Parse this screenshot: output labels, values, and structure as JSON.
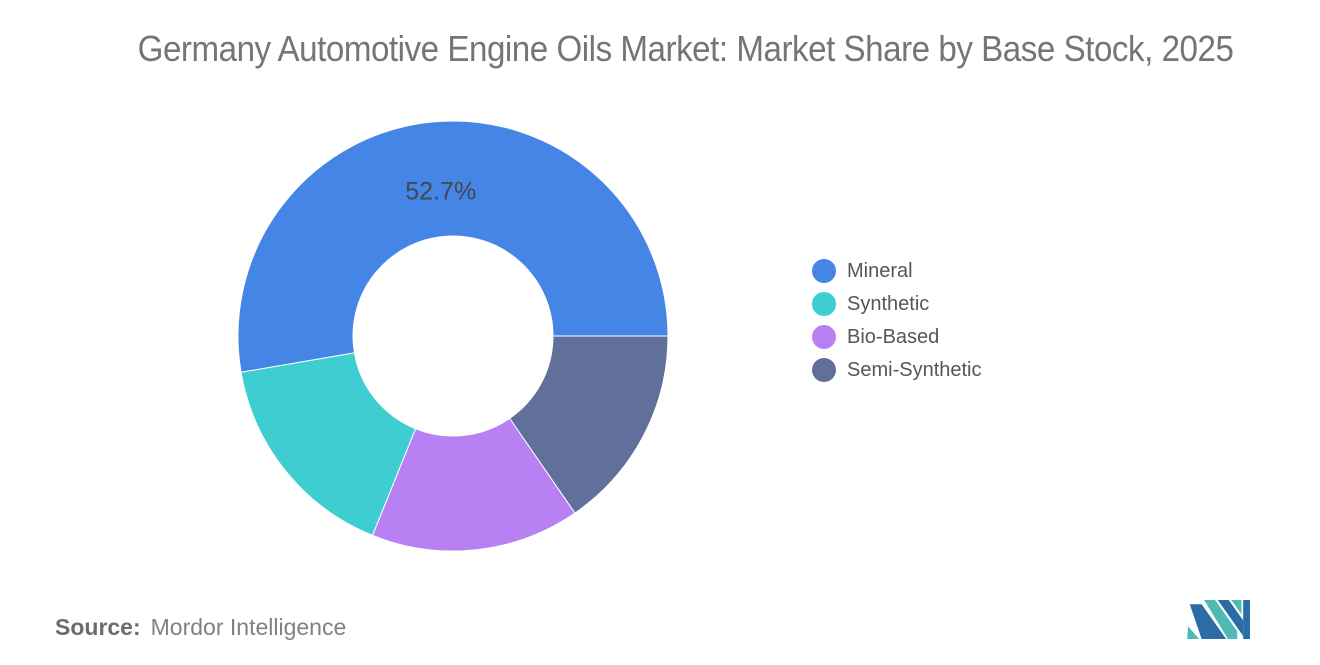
{
  "title": "Germany Automotive Engine Oils Market: Market Share by Base Stock, 2025",
  "chart_data": {
    "type": "pie",
    "subtype": "donut",
    "title": "Germany Automotive Engine Oils Market: Market Share by Base Stock, 2025",
    "unit": "%",
    "series": [
      {
        "name": "Mineral",
        "value": 52.7,
        "label": "52.7%",
        "color": "#4485e6"
      },
      {
        "name": "Synthetic",
        "value": 16.2,
        "label": "",
        "color": "#3ecdd1"
      },
      {
        "name": "Bio-Based",
        "value": 15.7,
        "label": "",
        "color": "#b781f4"
      },
      {
        "name": "Semi-Synthetic",
        "value": 15.4,
        "label": "",
        "color": "#60709a"
      }
    ],
    "start_angle_deg": 0,
    "direction": "counterclockwise",
    "inner_radius_ratio": 0.465,
    "legend_position": "right",
    "label_color": "#46474b"
  },
  "source": {
    "prefix": "Source:",
    "text": "Mordor Intelligence"
  },
  "logo": {
    "alt": "Mordor Intelligence logo",
    "colors": {
      "blue": "#2a6ca6",
      "teal": "#4fbab5"
    }
  }
}
